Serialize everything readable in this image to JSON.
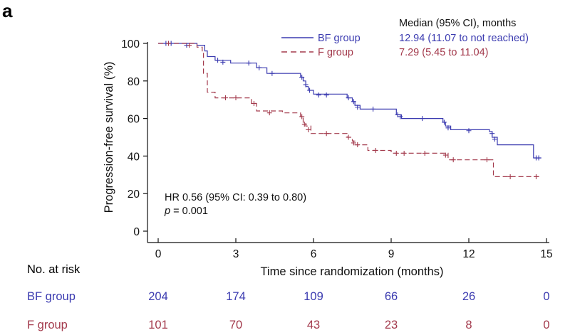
{
  "panel_label": "a",
  "colors": {
    "bf": "#3b3bb0",
    "f": "#a33a4c",
    "axis": "#111111"
  },
  "legend": {
    "title": "Median (95% CI), months",
    "items": [
      {
        "name": "BF group",
        "median": "12.94 (11.07 to not reached)",
        "dash": "none",
        "color": "#3b3bb0"
      },
      {
        "name": "F group",
        "median": "7.29 (5.45 to 11.04)",
        "dash": "8,5",
        "color": "#a33a4c"
      }
    ]
  },
  "stats": {
    "hr": "HR 0.56 (95% CI: 0.39 to 0.80)",
    "p_italic": "p",
    "p_rest": " = 0.001"
  },
  "risk_table": {
    "header": "No. at risk",
    "rows": [
      {
        "label": "BF group",
        "values": [
          "204",
          "174",
          "109",
          "66",
          "26",
          "0"
        ]
      },
      {
        "label": "F group",
        "values": [
          "101",
          "70",
          "43",
          "23",
          "8",
          "0"
        ]
      }
    ]
  },
  "chart_data": {
    "type": "line",
    "step": true,
    "xlabel": "Time since randomization (months)",
    "ylabel": "Progression-free survival (%)",
    "xlim": [
      0,
      15
    ],
    "ylim": [
      0,
      100
    ],
    "xticks": [
      0,
      3,
      6,
      9,
      12,
      15
    ],
    "yticks": [
      0,
      20,
      40,
      60,
      80,
      100
    ],
    "grid": false,
    "legend_position": "top-right",
    "series": [
      {
        "name": "BF group",
        "points": [
          [
            0,
            100
          ],
          [
            1.5,
            99
          ],
          [
            1.8,
            96
          ],
          [
            1.9,
            93
          ],
          [
            2.2,
            91
          ],
          [
            2.8,
            89.5
          ],
          [
            3.8,
            87
          ],
          [
            4.2,
            84
          ],
          [
            5.5,
            82
          ],
          [
            5.6,
            80
          ],
          [
            5.7,
            77
          ],
          [
            5.8,
            75
          ],
          [
            6.0,
            73
          ],
          [
            7.3,
            71
          ],
          [
            7.5,
            69
          ],
          [
            7.6,
            67
          ],
          [
            7.8,
            65
          ],
          [
            9.2,
            62
          ],
          [
            9.4,
            60
          ],
          [
            11.0,
            58
          ],
          [
            11.1,
            56
          ],
          [
            11.3,
            54
          ],
          [
            12.8,
            53
          ],
          [
            12.9,
            50
          ],
          [
            13.1,
            46
          ],
          [
            14.5,
            39
          ],
          [
            14.8,
            39
          ]
        ],
        "censored": [
          [
            0.3,
            100
          ],
          [
            0.5,
            100
          ],
          [
            1.1,
            99
          ],
          [
            2.3,
            91
          ],
          [
            2.5,
            90
          ],
          [
            3.5,
            89.5
          ],
          [
            3.9,
            87
          ],
          [
            4.4,
            84
          ],
          [
            5.55,
            82
          ],
          [
            5.7,
            78
          ],
          [
            5.85,
            75
          ],
          [
            6.2,
            72.5
          ],
          [
            6.5,
            72.5
          ],
          [
            7.35,
            71
          ],
          [
            7.55,
            69
          ],
          [
            7.7,
            66
          ],
          [
            8.3,
            65
          ],
          [
            9.25,
            62
          ],
          [
            9.35,
            61
          ],
          [
            10.2,
            60
          ],
          [
            11.05,
            58
          ],
          [
            11.2,
            55
          ],
          [
            12.0,
            53.5
          ],
          [
            12.9,
            52
          ],
          [
            13.0,
            49
          ],
          [
            14.6,
            39
          ],
          [
            14.7,
            39
          ]
        ]
      },
      {
        "name": "F group",
        "points": [
          [
            0,
            100
          ],
          [
            1.5,
            98
          ],
          [
            1.7,
            95
          ],
          [
            1.75,
            84
          ],
          [
            1.9,
            74
          ],
          [
            2.2,
            71
          ],
          [
            3.6,
            68
          ],
          [
            3.8,
            64
          ],
          [
            4.8,
            63
          ],
          [
            5.5,
            61
          ],
          [
            5.6,
            58
          ],
          [
            5.7,
            56
          ],
          [
            5.9,
            52
          ],
          [
            6.3,
            52
          ],
          [
            7.3,
            50
          ],
          [
            7.5,
            48
          ],
          [
            7.6,
            46
          ],
          [
            8.1,
            43
          ],
          [
            9.0,
            41.5
          ],
          [
            11.0,
            41.5
          ],
          [
            11.2,
            38
          ],
          [
            12.9,
            38
          ],
          [
            12.95,
            29
          ],
          [
            14.8,
            29
          ]
        ],
        "censored": [
          [
            0.4,
            100
          ],
          [
            1.2,
            99
          ],
          [
            2.6,
            71
          ],
          [
            3.0,
            71
          ],
          [
            3.7,
            68
          ],
          [
            4.3,
            63
          ],
          [
            5.55,
            61
          ],
          [
            5.65,
            57
          ],
          [
            5.8,
            54
          ],
          [
            6.5,
            52
          ],
          [
            7.35,
            50
          ],
          [
            7.55,
            47
          ],
          [
            7.7,
            46
          ],
          [
            8.4,
            43
          ],
          [
            9.2,
            41.5
          ],
          [
            9.5,
            41.5
          ],
          [
            10.3,
            41.5
          ],
          [
            11.1,
            40.5
          ],
          [
            11.4,
            38
          ],
          [
            12.7,
            38
          ],
          [
            13.6,
            29
          ],
          [
            14.6,
            29
          ]
        ]
      }
    ]
  }
}
